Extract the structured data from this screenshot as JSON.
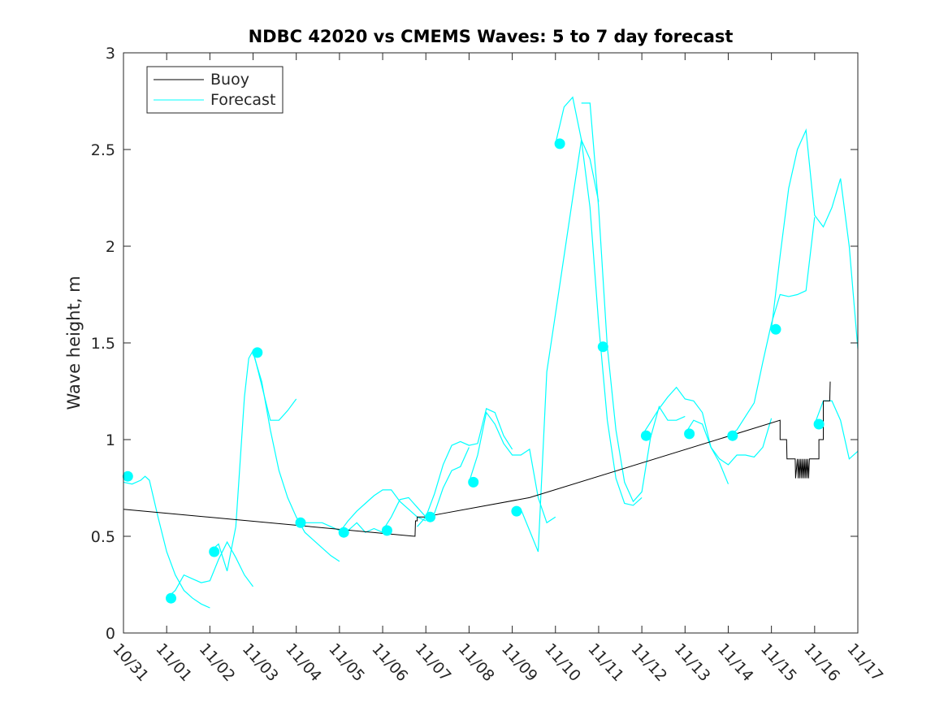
{
  "chart_data": {
    "type": "line",
    "title": "NDBC 42020 vs CMEMS Waves: 5 to 7 day forecast",
    "xlabel": "",
    "ylabel": "Wave height, m",
    "ylim": [
      0,
      3
    ],
    "xlim": [
      0,
      17
    ],
    "y_ticks": [
      "0",
      "0.5",
      "1",
      "1.5",
      "2",
      "2.5",
      "3"
    ],
    "x_ticks": [
      "10/31",
      "11/01",
      "11/02",
      "11/03",
      "11/04",
      "11/05",
      "11/06",
      "11/07",
      "11/08",
      "11/09",
      "11/10",
      "11/11",
      "11/12",
      "11/13",
      "11/14",
      "11/15",
      "11/16",
      "11/17"
    ],
    "legend": {
      "location": "top-left",
      "entries": [
        "Buoy",
        "Forecast"
      ]
    },
    "colors": {
      "buoy": "#000000",
      "forecast": "#00ffff",
      "axis": "#262626"
    },
    "buoy": {
      "name": "Buoy",
      "x": [
        0,
        6.75,
        6.76,
        6.8,
        6.8,
        7.1,
        7.2,
        9.4,
        15.2,
        15.2,
        15.35,
        15.36,
        15.55,
        15.56,
        15.6,
        15.62,
        15.64,
        15.66,
        15.68,
        15.7,
        15.72,
        15.74,
        15.76,
        15.78,
        15.8,
        15.82,
        15.84,
        15.86,
        15.88,
        15.9,
        16.1,
        16.1,
        16.2,
        16.2,
        16.35,
        16.36
      ],
      "y": [
        0.64,
        0.5,
        0.58,
        0.58,
        0.6,
        0.6,
        0.61,
        0.7,
        1.1,
        1.0,
        1.0,
        0.9,
        0.9,
        0.8,
        0.9,
        0.8,
        0.9,
        0.8,
        0.9,
        0.8,
        0.9,
        0.8,
        0.9,
        0.8,
        0.9,
        0.8,
        0.9,
        0.8,
        0.9,
        0.9,
        0.9,
        1.0,
        1.0,
        1.2,
        1.2,
        1.3
      ]
    },
    "forecast_series": [
      {
        "name": "Forecast",
        "x": [
          0,
          0.2,
          0.4,
          0.5,
          0.6,
          0.8,
          1.0,
          1.2,
          1.4,
          1.6,
          1.8,
          2.0
        ],
        "y": [
          0.78,
          0.77,
          0.79,
          0.81,
          0.79,
          0.6,
          0.42,
          0.3,
          0.22,
          0.18,
          0.15,
          0.13
        ]
      },
      {
        "name": "Forecast",
        "x": [
          1.0,
          1.2,
          1.4,
          1.6,
          1.8,
          2.0,
          2.2,
          2.4,
          2.6,
          2.8,
          3.0
        ],
        "y": [
          0.18,
          0.22,
          0.3,
          0.28,
          0.26,
          0.27,
          0.38,
          0.47,
          0.39,
          0.3,
          0.24
        ]
      },
      {
        "name": "Forecast",
        "x": [
          2.0,
          2.1,
          2.2,
          2.4,
          2.6,
          2.8,
          2.9,
          3.0,
          3.2,
          3.4,
          3.6,
          3.8,
          4.0
        ],
        "y": [
          0.42,
          0.44,
          0.46,
          0.32,
          0.55,
          1.22,
          1.42,
          1.46,
          1.28,
          1.1,
          1.1,
          1.15,
          1.21
        ]
      },
      {
        "name": "Forecast",
        "x": [
          3.0,
          3.2,
          3.4,
          3.6,
          3.8,
          4.0,
          4.2,
          4.4,
          4.6,
          4.8,
          5.0
        ],
        "y": [
          1.45,
          1.3,
          1.05,
          0.84,
          0.7,
          0.6,
          0.52,
          0.48,
          0.44,
          0.4,
          0.37
        ]
      },
      {
        "name": "Forecast",
        "x": [
          4.0,
          4.2,
          4.4,
          4.6,
          4.8,
          5.0,
          5.2,
          5.4,
          5.6,
          5.8,
          6.0
        ],
        "y": [
          0.57,
          0.57,
          0.57,
          0.57,
          0.55,
          0.53,
          0.53,
          0.57,
          0.52,
          0.54,
          0.52
        ]
      },
      {
        "name": "Forecast",
        "x": [
          5.0,
          5.2,
          5.4,
          5.6,
          5.8,
          6.0,
          6.2,
          6.4,
          6.6,
          6.8,
          7.0
        ],
        "y": [
          0.52,
          0.58,
          0.63,
          0.67,
          0.71,
          0.74,
          0.74,
          0.68,
          0.64,
          0.6,
          0.58
        ]
      },
      {
        "name": "Forecast",
        "x": [
          6.0,
          6.2,
          6.4,
          6.6,
          6.8,
          7.0,
          7.2,
          7.4,
          7.6,
          7.8,
          8.0
        ],
        "y": [
          0.53,
          0.6,
          0.69,
          0.7,
          0.65,
          0.6,
          0.62,
          0.75,
          0.84,
          0.86,
          0.96
        ]
      },
      {
        "name": "Forecast",
        "x": [
          6.8,
          7.0,
          7.2,
          7.4,
          7.6,
          7.8,
          8.0,
          8.2,
          8.4,
          8.6,
          8.8,
          9.0
        ],
        "y": [
          0.55,
          0.6,
          0.72,
          0.87,
          0.97,
          0.99,
          0.97,
          0.98,
          1.16,
          1.14,
          1.02,
          0.95
        ]
      },
      {
        "name": "Forecast",
        "x": [
          8.0,
          8.2,
          8.4,
          8.6,
          8.8,
          9.0,
          9.2,
          9.4,
          9.6,
          9.8,
          10.0
        ],
        "y": [
          0.78,
          0.92,
          1.14,
          1.08,
          0.98,
          0.92,
          0.92,
          0.95,
          0.7,
          0.57,
          0.6
        ]
      },
      {
        "name": "Forecast",
        "x": [
          9.0,
          9.2,
          9.4,
          9.6,
          9.8,
          10.0,
          10.2,
          10.4,
          10.6,
          10.8,
          11.0
        ],
        "y": [
          0.63,
          0.64,
          0.53,
          0.42,
          1.35,
          1.65,
          1.95,
          2.25,
          2.55,
          2.45,
          2.23
        ]
      },
      {
        "name": "Forecast",
        "x": [
          10.0,
          10.2,
          10.4,
          10.6,
          10.8,
          11.0,
          11.2,
          11.4,
          11.6,
          11.8,
          12.0
        ],
        "y": [
          2.53,
          2.72,
          2.77,
          2.55,
          2.2,
          1.6,
          1.1,
          0.8,
          0.67,
          0.66,
          0.7
        ]
      },
      {
        "name": "Forecast",
        "x": [
          10.6,
          10.8,
          11.0,
          11.2,
          11.4,
          11.6,
          11.8,
          12.0,
          12.2,
          12.4,
          12.6,
          12.8,
          13.0
        ],
        "y": [
          2.74,
          2.74,
          2.2,
          1.48,
          1.05,
          0.78,
          0.68,
          0.73,
          1.01,
          1.17,
          1.1,
          1.1,
          1.12
        ]
      },
      {
        "name": "Forecast",
        "x": [
          12.0,
          12.2,
          12.4,
          12.6,
          12.8,
          13.0,
          13.2,
          13.4,
          13.6,
          13.8,
          14.0
        ],
        "y": [
          1.02,
          1.09,
          1.16,
          1.22,
          1.27,
          1.21,
          1.2,
          1.14,
          0.96,
          0.88,
          0.77
        ]
      },
      {
        "name": "Forecast",
        "x": [
          13.0,
          13.2,
          13.4,
          13.6,
          13.8,
          14.0,
          14.2,
          14.4,
          14.6,
          14.8,
          15.0
        ],
        "y": [
          1.03,
          1.1,
          1.08,
          0.96,
          0.9,
          0.87,
          0.92,
          0.92,
          0.91,
          0.96,
          1.11
        ]
      },
      {
        "name": "Forecast",
        "x": [
          14.0,
          14.2,
          14.4,
          14.6,
          14.8,
          15.0,
          15.2,
          15.4,
          15.6,
          15.8,
          16.0
        ],
        "y": [
          1.02,
          1.05,
          1.12,
          1.19,
          1.4,
          1.6,
          1.75,
          1.74,
          1.75,
          1.77,
          2.15
        ]
      },
      {
        "name": "Forecast",
        "x": [
          15.0,
          15.2,
          15.4,
          15.6,
          15.8,
          16.0,
          16.2,
          16.4,
          16.6,
          16.8,
          17.0
        ],
        "y": [
          1.57,
          1.95,
          2.3,
          2.5,
          2.6,
          2.16,
          2.1,
          2.2,
          2.35,
          2.0,
          1.47
        ]
      },
      {
        "name": "Forecast",
        "x": [
          16.0,
          16.2,
          16.4,
          16.6,
          16.8,
          17.0
        ],
        "y": [
          1.08,
          1.2,
          1.2,
          1.1,
          0.9,
          0.94
        ]
      }
    ],
    "forecast_markers": {
      "x": [
        0.1,
        1.1,
        2.1,
        3.1,
        4.1,
        5.1,
        6.1,
        7.1,
        8.1,
        9.1,
        10.1,
        11.1,
        12.1,
        13.1,
        14.1,
        15.1,
        16.1
      ],
      "y": [
        0.81,
        0.18,
        0.42,
        1.45,
        0.57,
        0.52,
        0.53,
        0.6,
        0.78,
        0.63,
        2.53,
        1.48,
        1.02,
        1.03,
        1.02,
        1.57,
        1.08
      ]
    }
  }
}
